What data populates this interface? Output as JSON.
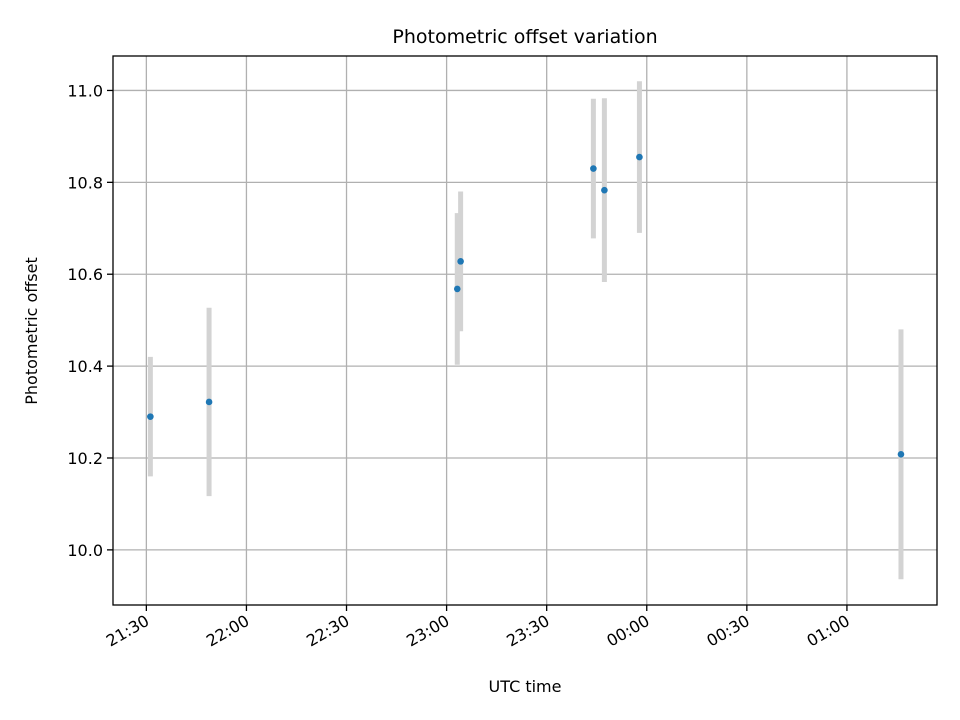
{
  "chart_data": {
    "type": "scatter",
    "title": "Photometric offset variation",
    "xlabel": "UTC time",
    "ylabel": "Photometric offset",
    "grid": true,
    "xlim_minutes": [
      -10,
      237
    ],
    "ylim": [
      9.88,
      11.075
    ],
    "x_ticks": [
      {
        "label": "21:30",
        "minutes": 0
      },
      {
        "label": "22:00",
        "minutes": 30
      },
      {
        "label": "22:30",
        "minutes": 60
      },
      {
        "label": "23:00",
        "minutes": 90
      },
      {
        "label": "23:30",
        "minutes": 120
      },
      {
        "label": "00:00",
        "minutes": 150
      },
      {
        "label": "00:30",
        "minutes": 180
      },
      {
        "label": "01:00",
        "minutes": 210
      }
    ],
    "y_ticks": [
      {
        "label": "10.0",
        "value": 10.0
      },
      {
        "label": "10.2",
        "value": 10.2
      },
      {
        "label": "10.4",
        "value": 10.4
      },
      {
        "label": "10.6",
        "value": 10.6
      },
      {
        "label": "10.8",
        "value": 10.8
      },
      {
        "label": "11.0",
        "value": 11.0
      }
    ],
    "marker_color": "#1f77b4",
    "errorbar_color": "#d3d3d3",
    "points": [
      {
        "minutes": 1.2,
        "y": 10.29,
        "yerr": 0.13
      },
      {
        "minutes": 18.8,
        "y": 10.322,
        "yerr": 0.205
      },
      {
        "minutes": 93.2,
        "y": 10.568,
        "yerr": 0.165
      },
      {
        "minutes": 94.2,
        "y": 10.628,
        "yerr": 0.152
      },
      {
        "minutes": 134.0,
        "y": 10.83,
        "yerr": 0.152
      },
      {
        "minutes": 137.3,
        "y": 10.783,
        "yerr": 0.2
      },
      {
        "minutes": 147.8,
        "y": 10.855,
        "yerr": 0.165
      },
      {
        "minutes": 226.2,
        "y": 10.208,
        "yerr": 0.272
      }
    ]
  }
}
